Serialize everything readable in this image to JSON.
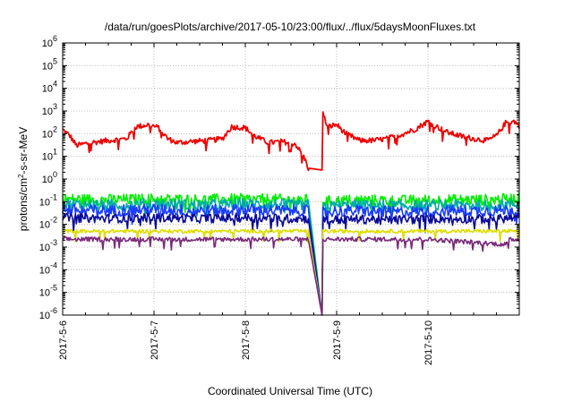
{
  "chart_data": {
    "type": "line",
    "title": "/data/run/goesPlots/archive/2017-05-10/23:00/flux/../flux/5daysMoonFluxes.txt",
    "xlabel": "Coordinated Universal Time (UTC)",
    "ylabel_prefix": "protons/cm",
    "ylabel_sup": "2",
    "ylabel_suffix": "-s-sr-MeV",
    "yscale": "log",
    "xlim": [
      "2017-05-06",
      "2017-05-11"
    ],
    "ylim_exp": [
      -6,
      6
    ],
    "x_ticks": [
      {
        "label": "2017-5-6",
        "day": 0
      },
      {
        "label": "2017-5-7",
        "day": 1
      },
      {
        "label": "2017-5-8",
        "day": 2
      },
      {
        "label": "2017-5-9",
        "day": 3
      },
      {
        "label": "2017-5-10",
        "day": 4
      }
    ],
    "y_ticks": [
      {
        "exp": -6,
        "label": "-6"
      },
      {
        "exp": -5,
        "label": "-5"
      },
      {
        "exp": -4,
        "label": "-4"
      },
      {
        "exp": -3,
        "label": "-3"
      },
      {
        "exp": -2,
        "label": "-2"
      },
      {
        "exp": -1,
        "label": "-1"
      },
      {
        "exp": 0,
        "label": "0"
      },
      {
        "exp": 1,
        "label": "1"
      },
      {
        "exp": 2,
        "label": "2"
      },
      {
        "exp": 3,
        "label": "3"
      },
      {
        "exp": 4,
        "label": "4"
      },
      {
        "exp": 5,
        "label": "5"
      },
      {
        "exp": 6,
        "label": "6"
      }
    ],
    "tick_base": "10",
    "grid": true,
    "gap_start_day": 2.69,
    "gap_end_day": 2.84,
    "series": [
      {
        "color": "#ee0000",
        "noise": 0.12,
        "gap_floor": 2.5,
        "anchors": [
          [
            0,
            150
          ],
          [
            0.08,
            80
          ],
          [
            0.15,
            30
          ],
          [
            0.3,
            40
          ],
          [
            0.5,
            50
          ],
          [
            0.7,
            60
          ],
          [
            0.8,
            200
          ],
          [
            0.95,
            250
          ],
          [
            1.05,
            180
          ],
          [
            1.15,
            60
          ],
          [
            1.25,
            40
          ],
          [
            1.4,
            45
          ],
          [
            1.6,
            50
          ],
          [
            1.75,
            60
          ],
          [
            1.85,
            200
          ],
          [
            2.0,
            180
          ],
          [
            2.1,
            80
          ],
          [
            2.25,
            40
          ],
          [
            2.4,
            45
          ],
          [
            2.55,
            35
          ],
          [
            2.65,
            8
          ],
          [
            2.69,
            3
          ],
          [
            2.84,
            1000
          ],
          [
            2.9,
            200
          ],
          [
            3.0,
            250
          ],
          [
            3.1,
            100
          ],
          [
            3.25,
            50
          ],
          [
            3.4,
            50
          ],
          [
            3.55,
            60
          ],
          [
            3.7,
            90
          ],
          [
            3.85,
            150
          ],
          [
            4.0,
            350
          ],
          [
            4.1,
            200
          ],
          [
            4.2,
            120
          ],
          [
            4.35,
            80
          ],
          [
            4.5,
            60
          ],
          [
            4.65,
            50
          ],
          [
            4.75,
            80
          ],
          [
            4.85,
            300
          ],
          [
            4.95,
            350
          ],
          [
            5.0,
            200
          ]
        ]
      },
      {
        "color": "#00ee00",
        "noise": 0.25,
        "gap_floor": 1e-06,
        "anchors": [
          [
            0,
            0.13
          ],
          [
            0.5,
            0.12
          ],
          [
            1,
            0.13
          ],
          [
            1.5,
            0.12
          ],
          [
            2,
            0.13
          ],
          [
            2.5,
            0.12
          ],
          [
            2.69,
            0.12
          ],
          [
            2.84,
            0.1
          ],
          [
            3.2,
            0.12
          ],
          [
            3.7,
            0.11
          ],
          [
            4.2,
            0.12
          ],
          [
            4.7,
            0.12
          ],
          [
            5,
            0.14
          ]
        ]
      },
      {
        "color": "#00aaaa",
        "noise": 0.25,
        "gap_floor": 1e-06,
        "anchors": [
          [
            0,
            0.08
          ],
          [
            0.5,
            0.07
          ],
          [
            1,
            0.08
          ],
          [
            1.5,
            0.07
          ],
          [
            2,
            0.08
          ],
          [
            2.5,
            0.07
          ],
          [
            2.69,
            0.07
          ],
          [
            2.84,
            0.06
          ],
          [
            3.2,
            0.07
          ],
          [
            3.7,
            0.065
          ],
          [
            4.2,
            0.07
          ],
          [
            4.7,
            0.07
          ],
          [
            5,
            0.08
          ]
        ]
      },
      {
        "color": "#1a3cff",
        "noise": 0.25,
        "gap_floor": 1e-06,
        "anchors": [
          [
            0,
            0.045
          ],
          [
            0.5,
            0.04
          ],
          [
            1,
            0.045
          ],
          [
            1.5,
            0.04
          ],
          [
            2,
            0.045
          ],
          [
            2.5,
            0.04
          ],
          [
            2.69,
            0.04
          ],
          [
            2.84,
            0.035
          ],
          [
            3.2,
            0.04
          ],
          [
            3.7,
            0.035
          ],
          [
            4.2,
            0.04
          ],
          [
            4.7,
            0.04
          ],
          [
            5,
            0.045
          ]
        ]
      },
      {
        "color": "#0a0a99",
        "noise": 0.2,
        "gap_floor": 1e-06,
        "anchors": [
          [
            0,
            0.02
          ],
          [
            0.5,
            0.018
          ],
          [
            1,
            0.02
          ],
          [
            1.5,
            0.018
          ],
          [
            2,
            0.02
          ],
          [
            2.5,
            0.018
          ],
          [
            2.69,
            0.018
          ],
          [
            2.84,
            0.015
          ],
          [
            3.2,
            0.017
          ],
          [
            3.7,
            0.016
          ],
          [
            4.2,
            0.018
          ],
          [
            4.7,
            0.017
          ],
          [
            5,
            0.02
          ]
        ]
      },
      {
        "color": "#dddd00",
        "noise": 0.08,
        "gap_floor": 1e-06,
        "anchors": [
          [
            0,
            0.005
          ],
          [
            1,
            0.005
          ],
          [
            2,
            0.005
          ],
          [
            2.69,
            0.005
          ],
          [
            2.84,
            0.005
          ],
          [
            4,
            0.005
          ],
          [
            5,
            0.005
          ]
        ]
      },
      {
        "color": "#7a2a7a",
        "noise": 0.1,
        "gap_floor": 1e-06,
        "anchors": [
          [
            0,
            0.0022
          ],
          [
            1,
            0.0022
          ],
          [
            2,
            0.0022
          ],
          [
            2.69,
            0.0022
          ],
          [
            2.84,
            0.0022
          ],
          [
            4,
            0.0022
          ],
          [
            4.85,
            0.0013
          ],
          [
            4.9,
            0.0022
          ],
          [
            5,
            0.0022
          ]
        ]
      }
    ]
  }
}
